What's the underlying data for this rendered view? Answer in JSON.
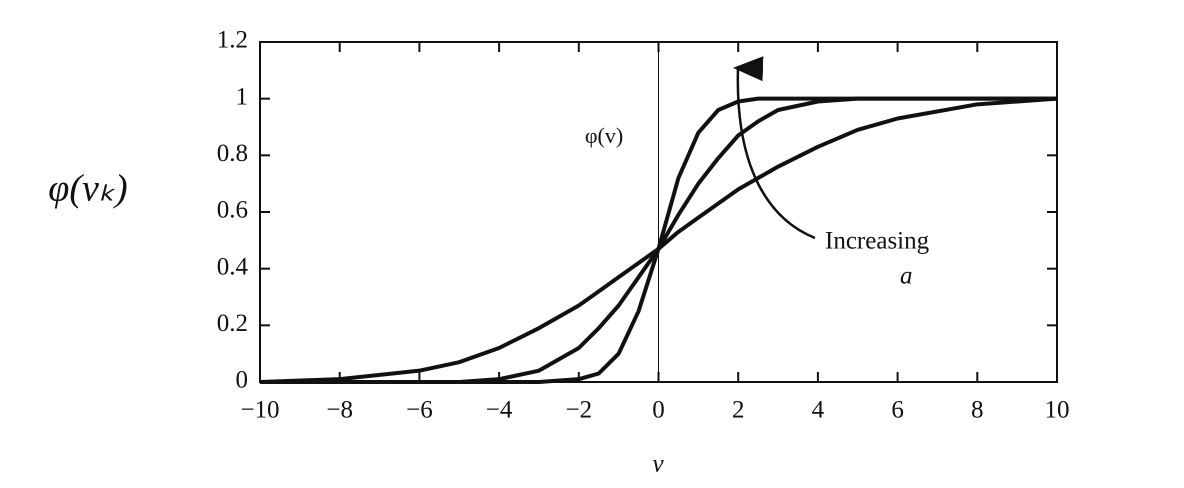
{
  "chart_data": {
    "type": "line",
    "ylabel": "φ(vₖ)",
    "xlabel": "v",
    "curve_label": "φ(v)",
    "annotation": [
      "Increasing",
      "a"
    ],
    "x": [
      -10,
      -8,
      -6,
      -5,
      -4,
      -3,
      -2,
      -1.5,
      -1,
      -0.5,
      0,
      0.5,
      1,
      1.5,
      2,
      2.5,
      3,
      4,
      5,
      6,
      8,
      10
    ],
    "series": [
      {
        "color": "#111111",
        "values": [
          0,
          0.01,
          0.04,
          0.07,
          0.12,
          0.19,
          0.27,
          0.32,
          0.37,
          0.42,
          0.47,
          0.53,
          0.58,
          0.63,
          0.68,
          0.72,
          0.76,
          0.83,
          0.89,
          0.93,
          0.98,
          1
        ]
      },
      {
        "color": "#111111",
        "values": [
          0,
          0,
          0,
          0,
          0.01,
          0.04,
          0.12,
          0.19,
          0.27,
          0.37,
          0.47,
          0.59,
          0.7,
          0.79,
          0.87,
          0.92,
          0.96,
          0.99,
          1,
          1,
          1,
          1
        ]
      },
      {
        "color": "#111111",
        "values": [
          0,
          0,
          0,
          0,
          0,
          0,
          0.01,
          0.03,
          0.1,
          0.25,
          0.47,
          0.72,
          0.88,
          0.96,
          0.99,
          1,
          1,
          1,
          1,
          1,
          1,
          1
        ]
      }
    ],
    "xlim": [
      -10,
      10
    ],
    "ylim": [
      0,
      1.2
    ],
    "xticks": [
      {
        "value": -10,
        "label": "−10"
      },
      {
        "value": -8,
        "label": "−8"
      },
      {
        "value": -6,
        "label": "−6"
      },
      {
        "value": -4,
        "label": "−4"
      },
      {
        "value": -2,
        "label": "−2"
      },
      0,
      2,
      4,
      6,
      8,
      10
    ],
    "yticks": [
      0,
      0.2,
      0.4,
      0.6,
      0.8,
      1,
      1.2
    ],
    "grid": false
  }
}
